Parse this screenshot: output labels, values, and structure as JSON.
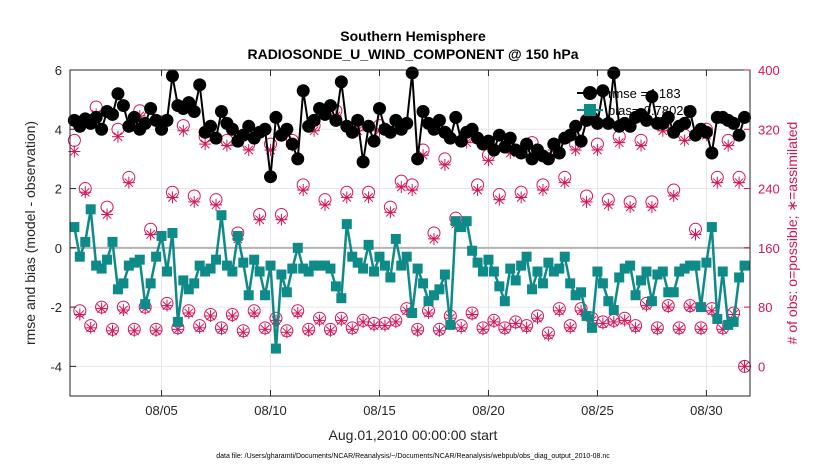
{
  "chart_data": {
    "type": "line",
    "title": "Southern Hemisphere",
    "subtitle": "RADIOSONDE_U_WIND_COMPONENT @ 150 hPa",
    "xlabel": "Aug.01,2010 00:00:00 start",
    "ylabel": "rmse and bias (model - observation)",
    "ylabel_right": "# of obs: o=possible; ∗=assimilated",
    "footnote": "data file: /Users/gharamti/Documents/NCAR/Reanalysis/~/Documents/NCAR/Reanalysis/webpub/obs_diag_output_2010-08.nc",
    "x_range": [
      0.8,
      32.0
    ],
    "ylim": [
      -5,
      6
    ],
    "ylim_right": [
      -40,
      400
    ],
    "x_ticks": [
      5,
      10,
      15,
      20,
      25,
      30
    ],
    "x_tick_labels": [
      "08/05",
      "08/10",
      "08/15",
      "08/20",
      "08/25",
      "08/30"
    ],
    "y_ticks": [
      -4,
      -2,
      0,
      2,
      4,
      6
    ],
    "y_ticks_right": [
      0,
      80,
      160,
      240,
      320,
      400
    ],
    "grid": true,
    "legend_position": "top-right",
    "colors": {
      "rmse": "#000000",
      "bias": "#0e8a89",
      "obs": "#d4145a",
      "zero_line": "#b3b3b3"
    },
    "series": [
      {
        "name": "rmse",
        "legend_label": "rmse  =4.183",
        "axis": "left",
        "marker": "circle-filled",
        "x": [
          1.0,
          1.25,
          1.5,
          1.75,
          2.0,
          2.25,
          2.5,
          2.75,
          3.0,
          3.25,
          3.5,
          3.75,
          4.0,
          4.25,
          4.5,
          4.75,
          5.0,
          5.25,
          5.5,
          5.75,
          6.0,
          6.25,
          6.5,
          6.75,
          7.0,
          7.25,
          7.5,
          7.75,
          8.0,
          8.25,
          8.5,
          8.75,
          9.0,
          9.25,
          9.5,
          9.75,
          10.0,
          10.25,
          10.5,
          10.75,
          11.0,
          11.25,
          11.5,
          11.75,
          12.0,
          12.25,
          12.5,
          12.75,
          13.0,
          13.25,
          13.5,
          13.75,
          14.0,
          14.25,
          14.5,
          14.75,
          15.0,
          15.25,
          15.5,
          15.75,
          16.0,
          16.25,
          16.5,
          16.75,
          17.0,
          17.25,
          17.5,
          17.75,
          18.0,
          18.25,
          18.5,
          18.75,
          19.0,
          19.25,
          19.5,
          19.75,
          20.0,
          20.25,
          20.5,
          20.75,
          21.0,
          21.25,
          21.5,
          21.75,
          22.0,
          22.25,
          22.5,
          22.75,
          23.0,
          23.25,
          23.5,
          23.75,
          24.0,
          24.25,
          24.5,
          24.75,
          25.0,
          25.25,
          25.5,
          25.75,
          26.0,
          26.25,
          26.5,
          26.75,
          27.0,
          27.25,
          27.5,
          27.75,
          28.0,
          28.25,
          28.5,
          28.75,
          29.0,
          29.25,
          29.5,
          29.75,
          30.0,
          30.25,
          30.5,
          30.75,
          31.0,
          31.25,
          31.5,
          31.75
        ],
        "y": [
          4.3,
          4.1,
          4.35,
          4.2,
          4.4,
          4.0,
          4.6,
          4.5,
          5.2,
          4.8,
          4.1,
          4.4,
          4.0,
          4.2,
          4.7,
          4.3,
          4.0,
          4.3,
          5.8,
          4.8,
          4.7,
          4.9,
          4.6,
          5.5,
          3.9,
          4.1,
          3.7,
          4.6,
          4.2,
          4.0,
          3.6,
          3.8,
          4.1,
          3.7,
          3.9,
          4.0,
          2.4,
          4.4,
          3.8,
          4.0,
          3.5,
          3.0,
          5.3,
          4.1,
          4.3,
          4.7,
          4.5,
          4.8,
          4.3,
          5.6,
          4.1,
          3.9,
          4.3,
          2.9,
          4.1,
          3.6,
          4.7,
          4.0,
          3.9,
          4.3,
          4.0,
          4.2,
          5.9,
          3.0,
          4.6,
          4.2,
          4.0,
          4.3,
          3.9,
          3.7,
          4.4,
          3.6,
          3.9,
          4.0,
          3.7,
          3.5,
          3.6,
          3.3,
          3.8,
          3.4,
          3.7,
          3.3,
          3.2,
          3.5,
          3.0,
          3.3,
          3.1,
          3.0,
          3.5,
          3.2,
          3.7,
          3.8,
          4.1,
          3.6,
          4.3,
          4.4,
          4.2,
          5.3,
          4.2,
          5.9,
          4.1,
          4.2,
          4.1,
          4.4,
          4.5,
          4.3,
          5.1,
          4.2,
          4.2,
          4.4,
          3.9,
          4.1,
          4.2,
          4.6,
          3.8,
          4.0,
          3.9,
          3.2,
          4.4,
          4.4,
          4.3,
          4.2,
          3.8,
          4.4
        ]
      },
      {
        "name": "bias",
        "legend_label": "bias=-0.78028",
        "axis": "left",
        "marker": "square-filled",
        "x": [
          1.0,
          1.25,
          1.5,
          1.75,
          2.0,
          2.25,
          2.5,
          2.75,
          3.0,
          3.25,
          3.5,
          3.75,
          4.0,
          4.25,
          4.5,
          4.75,
          5.0,
          5.25,
          5.5,
          5.75,
          6.0,
          6.25,
          6.5,
          6.75,
          7.0,
          7.25,
          7.5,
          7.75,
          8.0,
          8.25,
          8.5,
          8.75,
          9.0,
          9.25,
          9.5,
          9.75,
          10.0,
          10.25,
          10.5,
          10.75,
          11.0,
          11.25,
          11.5,
          11.75,
          12.0,
          12.25,
          12.5,
          12.75,
          13.0,
          13.25,
          13.5,
          13.75,
          14.0,
          14.25,
          14.5,
          14.75,
          15.0,
          15.25,
          15.5,
          15.75,
          16.0,
          16.25,
          16.5,
          16.75,
          17.0,
          17.25,
          17.5,
          17.75,
          18.0,
          18.25,
          18.5,
          18.75,
          19.0,
          19.25,
          19.5,
          19.75,
          20.0,
          20.25,
          20.5,
          20.75,
          21.0,
          21.25,
          21.5,
          21.75,
          22.0,
          22.25,
          22.5,
          22.75,
          23.0,
          23.25,
          23.5,
          23.75,
          24.0,
          24.25,
          24.5,
          24.75,
          25.0,
          25.25,
          25.5,
          25.75,
          26.0,
          26.25,
          26.5,
          26.75,
          27.0,
          27.25,
          27.5,
          27.75,
          28.0,
          28.25,
          28.5,
          28.75,
          29.0,
          29.25,
          29.5,
          29.75,
          30.0,
          30.25,
          30.5,
          30.75,
          31.0,
          31.25,
          31.5,
          31.75
        ],
        "y": [
          0.7,
          -0.3,
          0.2,
          1.3,
          -0.6,
          -0.7,
          -0.4,
          0.2,
          -1.4,
          -1.2,
          -0.6,
          -0.5,
          -0.4,
          -1.9,
          -1.2,
          -0.3,
          0.4,
          -0.8,
          0.5,
          -2.5,
          -1.1,
          -1.4,
          -1.2,
          -0.6,
          -0.8,
          -0.7,
          -0.4,
          1.1,
          -0.6,
          -0.8,
          0.4,
          -0.5,
          -1.6,
          -0.4,
          -0.8,
          -1.6,
          -0.6,
          -3.4,
          -0.9,
          -1.5,
          -0.7,
          0.0,
          -0.7,
          -0.8,
          -0.6,
          -0.6,
          -0.6,
          -0.7,
          -1.3,
          -1.7,
          0.8,
          -0.3,
          -0.5,
          -0.7,
          0.1,
          -0.8,
          -0.3,
          -0.6,
          -1.0,
          0.3,
          -0.6,
          -0.3,
          -2.2,
          -0.7,
          -1.2,
          -1.8,
          -1.6,
          -1.4,
          -0.9,
          -2.6,
          0.9,
          0.7,
          0.9,
          -0.1,
          -0.5,
          -0.8,
          -0.4,
          -0.8,
          -1.3,
          -1.8,
          -0.7,
          -1.1,
          -0.6,
          -0.3,
          -1.4,
          -0.8,
          -1.2,
          -0.5,
          -0.8,
          -0.7,
          -0.3,
          -1.2,
          -1.6,
          -1.5,
          -2.3,
          -2.7,
          -0.8,
          -1.2,
          -1.8,
          -2.1,
          -1.0,
          -0.7,
          -0.6,
          -1.6,
          -1.1,
          -0.8,
          -1.8,
          -0.9,
          -0.8,
          -1.5,
          -1.5,
          -0.8,
          -0.7,
          -0.6,
          -0.6,
          -2.0,
          -0.5,
          0.7,
          -2.4,
          -0.8,
          -2.6,
          -2.5,
          -1.0,
          -0.6
        ]
      },
      {
        "name": "# of obs possible",
        "axis": "right",
        "marker": "circle-open",
        "x": [
          1.0,
          1.25,
          1.5,
          1.75,
          2.0,
          2.25,
          2.5,
          2.75,
          3.0,
          3.25,
          3.5,
          3.75,
          4.0,
          4.25,
          4.5,
          4.75,
          5.0,
          5.25,
          5.5,
          5.75,
          6.0,
          6.25,
          6.5,
          6.75,
          7.0,
          7.25,
          7.5,
          7.75,
          8.0,
          8.25,
          8.5,
          8.75,
          9.0,
          9.25,
          9.5,
          9.75,
          10.0,
          10.25,
          10.5,
          10.75,
          11.0,
          11.25,
          11.5,
          11.75,
          12.0,
          12.25,
          12.5,
          12.75,
          13.0,
          13.25,
          13.5,
          13.75,
          14.0,
          14.25,
          14.5,
          14.75,
          15.0,
          15.25,
          15.5,
          15.75,
          16.0,
          16.25,
          16.5,
          16.75,
          17.0,
          17.25,
          17.5,
          17.75,
          18.0,
          18.25,
          18.5,
          18.75,
          19.0,
          19.25,
          19.5,
          19.75,
          20.0,
          20.25,
          20.5,
          20.75,
          21.0,
          21.25,
          21.5,
          21.75,
          22.0,
          22.25,
          22.5,
          22.75,
          23.0,
          23.25,
          23.5,
          23.75,
          24.0,
          24.25,
          24.5,
          24.75,
          25.0,
          25.25,
          25.5,
          25.75,
          26.0,
          26.25,
          26.5,
          26.75,
          27.0,
          27.25,
          27.5,
          27.75,
          28.0,
          28.25,
          28.5,
          28.75,
          29.0,
          29.25,
          29.5,
          29.75,
          30.0,
          30.25,
          30.5,
          30.75,
          31.0,
          31.25,
          31.5,
          31.75
        ],
        "y": [
          305,
          75,
          240,
          55,
          350,
          80,
          215,
          50,
          320,
          80,
          255,
          50,
          345,
          80,
          185,
          50,
          330,
          85,
          235,
          52,
          325,
          75,
          230,
          55,
          310,
          70,
          225,
          52,
          305,
          70,
          180,
          48,
          300,
          75,
          205,
          52,
          300,
          65,
          205,
          48,
          305,
          75,
          245,
          50,
          325,
          65,
          225,
          50,
          345,
          65,
          235,
          52,
          325,
          62,
          235,
          58,
          325,
          58,
          215,
          62,
          250,
          78,
          245,
          50,
          292,
          75,
          180,
          50,
          280,
          68,
          200,
          55,
          310,
          72,
          245,
          52,
          285,
          62,
          232,
          52,
          295,
          60,
          235,
          55,
          302,
          68,
          245,
          45,
          300,
          78,
          255,
          55,
          300,
          78,
          230,
          65,
          300,
          60,
          225,
          62,
          310,
          65,
          222,
          55,
          305,
          85,
          222,
          52,
          325,
          82,
          238,
          52,
          312,
          82,
          185,
          52,
          320,
          78,
          255,
          52,
          305,
          72,
          255,
          0
        ]
      },
      {
        "name": "# of obs assimilated",
        "axis": "right",
        "marker": "asterisk",
        "x": [
          1.0,
          1.25,
          1.5,
          1.75,
          2.0,
          2.25,
          2.5,
          2.75,
          3.0,
          3.25,
          3.5,
          3.75,
          4.0,
          4.25,
          4.5,
          4.75,
          5.0,
          5.25,
          5.5,
          5.75,
          6.0,
          6.25,
          6.5,
          6.75,
          7.0,
          7.25,
          7.5,
          7.75,
          8.0,
          8.25,
          8.5,
          8.75,
          9.0,
          9.25,
          9.5,
          9.75,
          10.0,
          10.25,
          10.5,
          10.75,
          11.0,
          11.25,
          11.5,
          11.75,
          12.0,
          12.25,
          12.5,
          12.75,
          13.0,
          13.25,
          13.5,
          13.75,
          14.0,
          14.25,
          14.5,
          14.75,
          15.0,
          15.25,
          15.5,
          15.75,
          16.0,
          16.25,
          16.5,
          16.75,
          17.0,
          17.25,
          17.5,
          17.75,
          18.0,
          18.25,
          18.5,
          18.75,
          19.0,
          19.25,
          19.5,
          19.75,
          20.0,
          20.25,
          20.5,
          20.75,
          21.0,
          21.25,
          21.5,
          21.75,
          22.0,
          22.25,
          22.5,
          22.75,
          23.0,
          23.25,
          23.5,
          23.75,
          24.0,
          24.25,
          24.5,
          24.75,
          25.0,
          25.25,
          25.5,
          25.75,
          26.0,
          26.25,
          26.5,
          26.75,
          27.0,
          27.25,
          27.5,
          27.75,
          28.0,
          28.25,
          28.5,
          28.75,
          29.0,
          29.25,
          29.5,
          29.75,
          30.0,
          30.25,
          30.5,
          30.75,
          31.0,
          31.25,
          31.5,
          31.75
        ],
        "y": [
          290,
          70,
          235,
          52,
          340,
          78,
          205,
          48,
          310,
          76,
          248,
          48,
          338,
          78,
          178,
          48,
          322,
          82,
          228,
          50,
          318,
          72,
          222,
          52,
          300,
          68,
          218,
          50,
          298,
          68,
          172,
          46,
          292,
          72,
          198,
          50,
          292,
          62,
          198,
          46,
          298,
          72,
          238,
          48,
          318,
          62,
          218,
          48,
          338,
          62,
          228,
          50,
          318,
          60,
          228,
          55,
          318,
          55,
          208,
          60,
          242,
          75,
          238,
          48,
          285,
          72,
          172,
          48,
          272,
          65,
          192,
          52,
          302,
          70,
          238,
          50,
          278,
          60,
          225,
          50,
          288,
          58,
          228,
          52,
          295,
          65,
          238,
          42,
          292,
          75,
          248,
          52,
          292,
          75,
          222,
          62,
          292,
          58,
          218,
          60,
          302,
          62,
          215,
          52,
          298,
          82,
          215,
          50,
          318,
          80,
          230,
          50,
          305,
          80,
          178,
          50,
          312,
          75,
          248,
          50,
          298,
          70,
          248,
          0
        ]
      }
    ]
  }
}
